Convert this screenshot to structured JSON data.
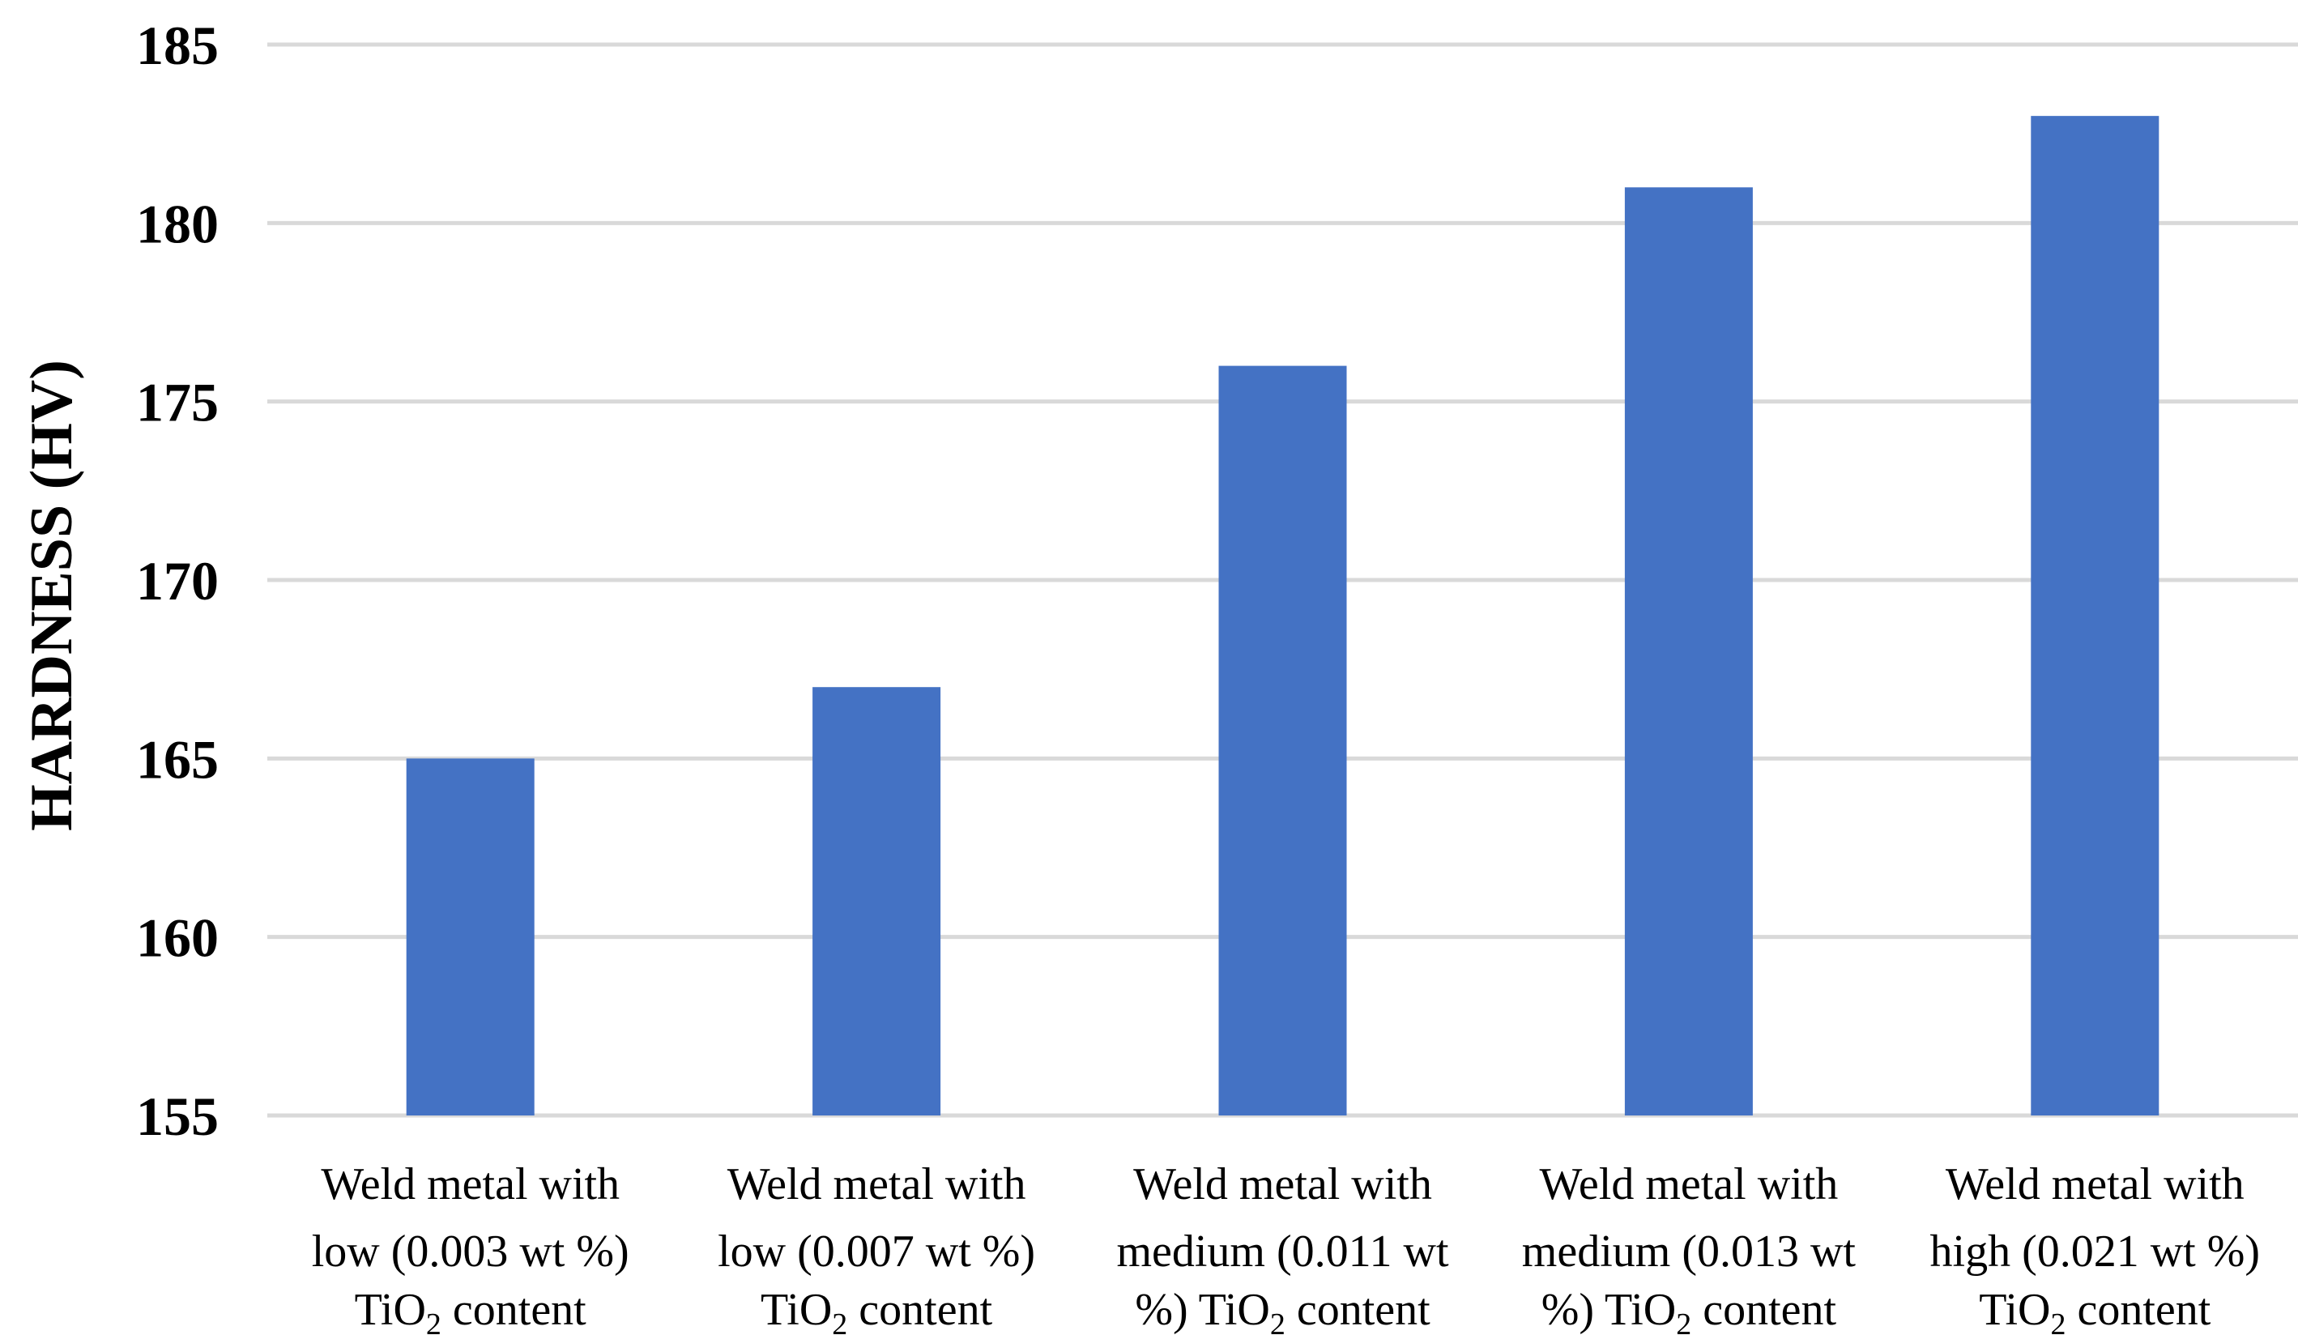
{
  "chart_data": {
    "type": "bar",
    "title": "",
    "ylabel": "HARDNESS (HV)",
    "xlabel": "",
    "ylim": [
      155,
      185
    ],
    "yticks": [
      "155",
      "160",
      "165",
      "170",
      "175",
      "180",
      "185"
    ],
    "grid": true,
    "bar_color": "#4472c4",
    "categories": [
      {
        "line1": "Weld metal with",
        "line2": "low (0.003 wt %)",
        "line3_pre": "TiO",
        "line3_sub": "2",
        "line3_post": " content"
      },
      {
        "line1": "Weld metal with",
        "line2": "low (0.007 wt %)",
        "line3_pre": "TiO",
        "line3_sub": "2",
        "line3_post": " content"
      },
      {
        "line1": "Weld metal with",
        "line2": "medium (0.011 wt",
        "line3_pre": "%) TiO",
        "line3_sub": "2",
        "line3_post": " content"
      },
      {
        "line1": "Weld metal with",
        "line2": "medium (0.013 wt",
        "line3_pre": "%) TiO",
        "line3_sub": "2",
        "line3_post": " content"
      },
      {
        "line1": "Weld metal with",
        "line2": "high (0.021 wt %)",
        "line3_pre": "TiO",
        "line3_sub": "2",
        "line3_post": " content"
      }
    ],
    "values": [
      165,
      167,
      176,
      181,
      183
    ]
  }
}
